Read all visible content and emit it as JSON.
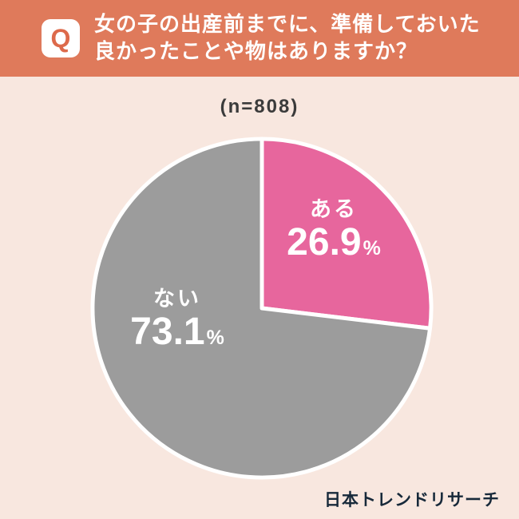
{
  "header": {
    "q_label": "Q",
    "title_line1": "女の子の出産前までに、準備しておいた",
    "title_line2": "良かったことや物はありますか？"
  },
  "chart_data": {
    "type": "pie",
    "title": "女の子の出産前までに、準備しておいた良かったことや物はありますか？",
    "sample_label": "(n=808)",
    "categories": [
      "ある",
      "ない"
    ],
    "values": [
      26.9,
      73.1
    ],
    "unit": "%",
    "colors": [
      "#e7669d",
      "#9c9c9c"
    ],
    "start_angle_deg": 0,
    "direction": "clockwise",
    "slice_border_color": "#ffffff",
    "legend_position": "inside"
  },
  "footer": {
    "brand": "日本トレンドリサーチ"
  },
  "theme": {
    "header_bg": "#df7a5b",
    "page_bg": "#f8e7df",
    "q_color": "#dd6a4b",
    "footer_color": "#17293a"
  }
}
